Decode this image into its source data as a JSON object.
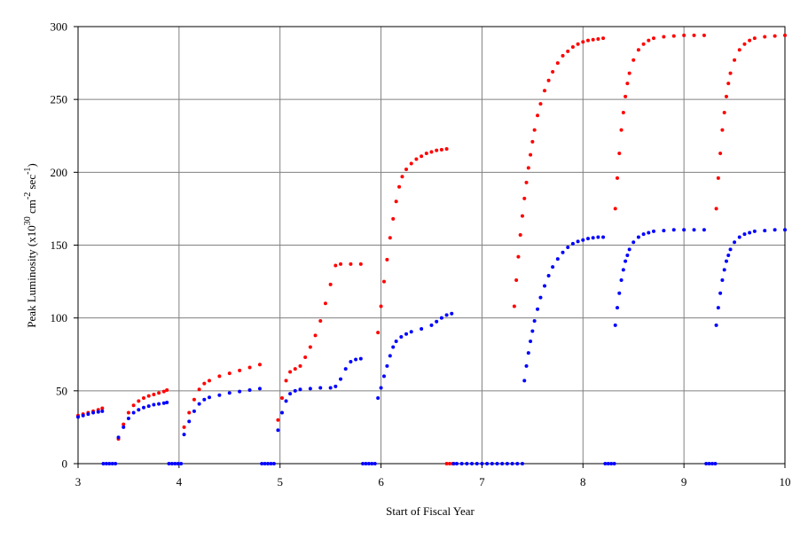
{
  "chart_data": {
    "type": "scatter",
    "title": "",
    "xlabel": "Start of Fiscal Year",
    "ylabel": {
      "prefix": "Peak Luminosity (x10",
      "exp1": "30",
      "mid1": " cm",
      "exp2": "-2",
      "mid2": " sec",
      "exp3": "-1",
      "suffix": ")"
    },
    "xlim": [
      3,
      10
    ],
    "ylim": [
      0,
      300
    ],
    "xticks": [
      "3",
      "4",
      "5",
      "6",
      "7",
      "8",
      "9",
      "10"
    ],
    "yticks": [
      "0",
      "50",
      "100",
      "150",
      "200",
      "250",
      "300"
    ],
    "grid": true,
    "legend": "none",
    "series": [
      {
        "color": "#ff0000",
        "segments": [
          {
            "x": [
              3.0,
              3.05,
              3.1,
              3.15,
              3.2,
              3.24
            ],
            "y": [
              33,
              34,
              35,
              36,
              37,
              38
            ]
          },
          {
            "x": [
              3.4,
              3.45,
              3.5,
              3.55,
              3.6,
              3.65,
              3.7,
              3.75,
              3.8,
              3.85,
              3.88
            ],
            "y": [
              17,
              27,
              35,
              40,
              43,
              45,
              46.5,
              47.5,
              48.5,
              49.5,
              50.5
            ]
          },
          {
            "x": [
              4.05,
              4.1,
              4.15,
              4.2,
              4.25,
              4.3,
              4.4,
              4.5,
              4.6,
              4.7,
              4.8
            ],
            "y": [
              25,
              35,
              44,
              51,
              55,
              57,
              60,
              62,
              64,
              66,
              68
            ]
          },
          {
            "x": [
              4.98,
              5.02,
              5.06,
              5.1,
              5.15,
              5.2,
              5.25,
              5.3,
              5.35,
              5.4,
              5.45,
              5.5,
              5.55,
              5.6,
              5.7,
              5.8
            ],
            "y": [
              30,
              45,
              57,
              63,
              65,
              67,
              73,
              80,
              88,
              98,
              110,
              123,
              136,
              137,
              137,
              137
            ]
          },
          {
            "x": [
              5.97,
              6.0,
              6.03,
              6.06,
              6.09,
              6.12,
              6.15,
              6.18,
              6.21,
              6.25,
              6.3,
              6.35,
              6.4,
              6.45,
              6.5,
              6.55,
              6.6,
              6.65
            ],
            "y": [
              90,
              108,
              125,
              140,
              155,
              168,
              180,
              190,
              197,
              202,
              206,
              209,
              211,
              213,
              214,
              215,
              215.5,
              216
            ]
          },
          {
            "x": [
              7.32,
              7.34,
              7.36,
              7.38,
              7.4,
              7.42,
              7.44,
              7.46,
              7.48,
              7.5,
              7.52,
              7.55,
              7.58,
              7.62,
              7.66,
              7.7,
              7.75,
              7.8,
              7.85,
              7.9,
              7.95,
              8.0,
              8.05,
              8.1,
              8.15,
              8.2
            ],
            "y": [
              108,
              126,
              142,
              157,
              170,
              182,
              193,
              203,
              212,
              221,
              229,
              239,
              247,
              256,
              263,
              269,
              275,
              280,
              283,
              286,
              288,
              289.5,
              290.5,
              291,
              291.5,
              292
            ]
          },
          {
            "x": [
              8.32,
              8.34,
              8.36,
              8.38,
              8.4,
              8.42,
              8.44,
              8.46,
              8.5,
              8.55,
              8.6,
              8.65,
              8.7,
              8.8,
              8.9,
              9.0,
              9.1,
              9.2
            ],
            "y": [
              175,
              196,
              213,
              229,
              241,
              252,
              261,
              268,
              277,
              284,
              288,
              290.5,
              292,
              293,
              293.5,
              294,
              294,
              294
            ]
          },
          {
            "x": [
              9.32,
              9.34,
              9.36,
              9.38,
              9.4,
              9.42,
              9.44,
              9.46,
              9.5,
              9.55,
              9.6,
              9.65,
              9.7,
              9.8,
              9.9,
              10.0
            ],
            "y": [
              175,
              196,
              213,
              229,
              241,
              252,
              261,
              268,
              277,
              284,
              288,
              290.5,
              292,
              293,
              293.5,
              294
            ]
          },
          {
            "x": [
              6.65,
              6.68,
              6.71
            ],
            "y": [
              0,
              0,
              0
            ]
          }
        ]
      },
      {
        "color": "#0000ff",
        "segments": [
          {
            "x": [
              3.0,
              3.05,
              3.1,
              3.15,
              3.2,
              3.24
            ],
            "y": [
              32,
              33,
              34,
              35,
              35.5,
              36
            ]
          },
          {
            "x": [
              3.4,
              3.45,
              3.5,
              3.55,
              3.6,
              3.65,
              3.7,
              3.75,
              3.8,
              3.85,
              3.88
            ],
            "y": [
              18,
              25,
              31,
              35,
              37,
              38.5,
              39.5,
              40.5,
              41,
              41.5,
              42
            ]
          },
          {
            "x": [
              4.05,
              4.1,
              4.15,
              4.2,
              4.25,
              4.3,
              4.4,
              4.5,
              4.6,
              4.7,
              4.8
            ],
            "y": [
              20,
              29,
              36,
              41,
              44,
              45.5,
              47,
              48.5,
              49.5,
              50.5,
              51.5
            ]
          },
          {
            "x": [
              4.98,
              5.02,
              5.06,
              5.1,
              5.15,
              5.2,
              5.3,
              5.4,
              5.5,
              5.55,
              5.6,
              5.65,
              5.7,
              5.75,
              5.8
            ],
            "y": [
              23,
              35,
              43,
              48,
              50,
              51,
              51.5,
              52,
              52,
              53,
              58,
              65,
              70,
              71.5,
              72
            ]
          },
          {
            "x": [
              5.97,
              6.0,
              6.03,
              6.06,
              6.09,
              6.12,
              6.15,
              6.2,
              6.25,
              6.3,
              6.4,
              6.5,
              6.55,
              6.6,
              6.65,
              6.7
            ],
            "y": [
              45,
              52,
              60,
              67,
              74,
              80,
              84,
              87,
              89,
              90.5,
              92.5,
              95,
              97.5,
              100,
              102,
              103
            ]
          },
          {
            "x": [
              7.42,
              7.44,
              7.46,
              7.48,
              7.5,
              7.52,
              7.55,
              7.58,
              7.62,
              7.66,
              7.7,
              7.75,
              7.8,
              7.85,
              7.9,
              7.95,
              8.0,
              8.05,
              8.1,
              8.15,
              8.2
            ],
            "y": [
              57,
              67,
              76,
              84,
              91,
              98,
              106,
              114,
              122,
              129,
              135,
              140.5,
              145,
              148.5,
              151,
              152.5,
              153.5,
              154.5,
              155,
              155.5,
              155.5
            ]
          },
          {
            "x": [
              8.32,
              8.34,
              8.36,
              8.38,
              8.4,
              8.42,
              8.44,
              8.46,
              8.5,
              8.55,
              8.6,
              8.65,
              8.7,
              8.8,
              8.9,
              9.0,
              9.1,
              9.2
            ],
            "y": [
              95,
              107,
              117,
              126,
              133,
              139,
              143,
              147,
              152,
              155.5,
              157.5,
              158.5,
              159.5,
              160,
              160.5,
              160.5,
              160.5,
              160.5
            ]
          },
          {
            "x": [
              9.32,
              9.34,
              9.36,
              9.38,
              9.4,
              9.42,
              9.44,
              9.46,
              9.5,
              9.55,
              9.6,
              9.65,
              9.7,
              9.8,
              9.9,
              10.0
            ],
            "y": [
              95,
              107,
              117,
              126,
              133,
              139,
              143,
              147,
              152,
              155.5,
              157.5,
              158.5,
              159.5,
              160,
              160.5,
              160.5
            ]
          },
          {
            "x": [
              3.25,
              3.28,
              3.31,
              3.34,
              3.37
            ],
            "y": [
              0,
              0,
              0,
              0,
              0
            ]
          },
          {
            "x": [
              3.9,
              3.93,
              3.96,
              3.99,
              4.02
            ],
            "y": [
              0,
              0,
              0,
              0,
              0
            ]
          },
          {
            "x": [
              4.82,
              4.85,
              4.88,
              4.91,
              4.94
            ],
            "y": [
              0,
              0,
              0,
              0,
              0
            ]
          },
          {
            "x": [
              5.82,
              5.85,
              5.88,
              5.91,
              5.94
            ],
            "y": [
              0,
              0,
              0,
              0,
              0
            ]
          },
          {
            "x": [
              6.72,
              6.75,
              6.8,
              6.85,
              6.9,
              6.95,
              7.0,
              7.05,
              7.1,
              7.15,
              7.2,
              7.25,
              7.3,
              7.35,
              7.4
            ],
            "y": [
              0,
              0,
              0,
              0,
              0,
              0,
              0,
              0,
              0,
              0,
              0,
              0,
              0,
              0,
              0
            ]
          },
          {
            "x": [
              8.22,
              8.25,
              8.28,
              8.31
            ],
            "y": [
              0,
              0,
              0,
              0
            ]
          },
          {
            "x": [
              9.22,
              9.25,
              9.28,
              9.31
            ],
            "y": [
              0,
              0,
              0,
              0
            ]
          }
        ]
      }
    ]
  }
}
